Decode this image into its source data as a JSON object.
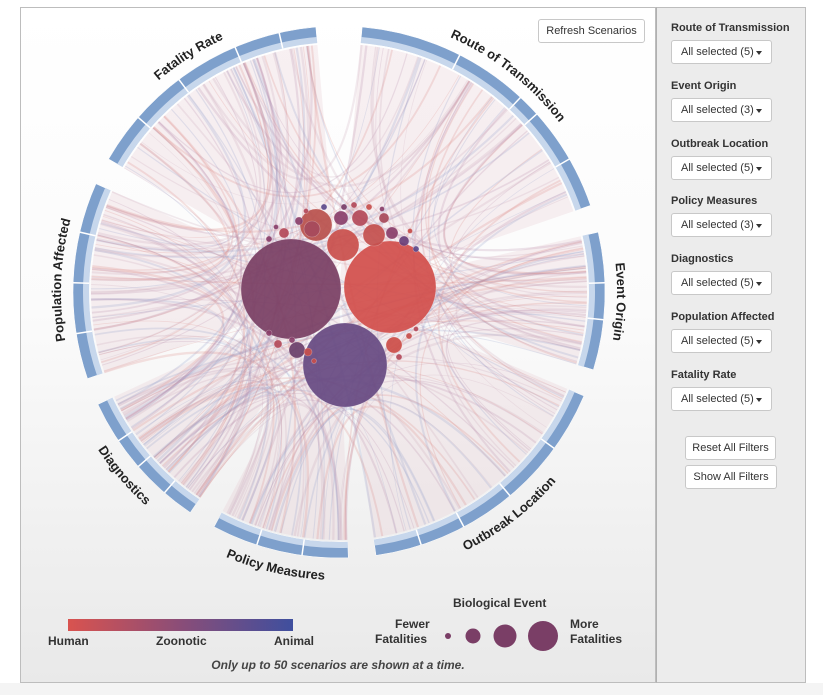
{
  "toolbar": {
    "refresh_label": "Refresh Scenarios"
  },
  "chord": {
    "groups": [
      {
        "key": "route",
        "label": "Route of Transmission"
      },
      {
        "key": "origin",
        "label": "Event Origin"
      },
      {
        "key": "location",
        "label": "Outbreak Location"
      },
      {
        "key": "policy",
        "label": "Policy Measures"
      },
      {
        "key": "diagnostics",
        "label": "Diagnostics"
      },
      {
        "key": "population",
        "label": "Population Affected"
      },
      {
        "key": "fatality",
        "label": "Fatality Rate"
      }
    ]
  },
  "legend": {
    "gradient": {
      "human_label": "Human",
      "zoonotic_label": "Zoonotic",
      "animal_label": "Animal",
      "colors": [
        "#d9534f",
        "#7a4a72",
        "#3f4f9e"
      ]
    },
    "size": {
      "title": "Biological Event",
      "fewer_label_1": "Fewer",
      "fewer_label_2": "Fatalities",
      "more_label_1": "More",
      "more_label_2": "Fatalities",
      "bubble_color": "#7a3e66"
    },
    "note": "Only up to 50 scenarios are shown at a time."
  },
  "colors": {
    "human": "#d9534f",
    "zoonotic": "#8a4d78",
    "animal": "#5e4a8c",
    "arc": "#6f95c6"
  },
  "filters": [
    {
      "label": "Route of Transmission",
      "value": "All selected (5)"
    },
    {
      "label": "Event Origin",
      "value": "All selected (3)"
    },
    {
      "label": "Outbreak Location",
      "value": "All selected (5)"
    },
    {
      "label": "Policy Measures",
      "value": "All selected (3)"
    },
    {
      "label": "Diagnostics",
      "value": "All selected (5)"
    },
    {
      "label": "Population Affected",
      "value": "All selected (5)"
    },
    {
      "label": "Fatality Rate",
      "value": "All selected (5)"
    }
  ],
  "actions": {
    "reset_label": "Reset All Filters",
    "show_label": "Show All Filters"
  }
}
